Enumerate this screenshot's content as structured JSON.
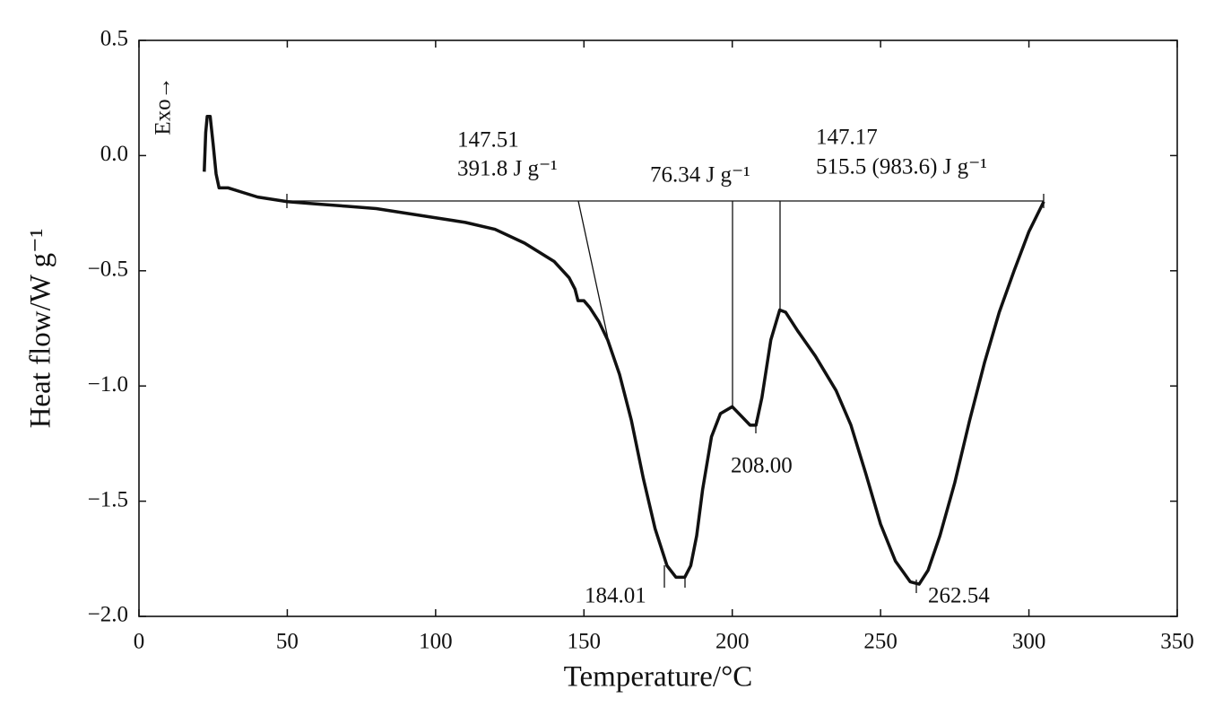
{
  "chart_data": {
    "type": "line",
    "x_label": "Temperature/°C",
    "y_label": "Heat flow/W g⁻¹",
    "x": [
      22,
      22.5,
      23,
      24,
      25,
      26,
      27,
      30,
      35,
      40,
      50,
      60,
      70,
      80,
      90,
      100,
      110,
      120,
      130,
      140,
      145,
      147,
      148,
      150,
      152,
      155,
      158,
      162,
      166,
      170,
      174,
      178,
      181,
      184,
      186,
      188,
      190,
      193,
      196,
      200,
      203,
      206,
      208,
      210,
      213,
      216,
      218,
      222,
      228,
      235,
      240,
      245,
      250,
      255,
      260,
      263,
      266,
      270,
      275,
      280,
      285,
      290,
      295,
      300,
      305
    ],
    "series": [
      {
        "name": "Heat flow",
        "color": "#111111",
        "values": [
          -0.07,
          0.1,
          0.17,
          0.17,
          0.05,
          -0.08,
          -0.14,
          -0.14,
          -0.16,
          -0.18,
          -0.2,
          -0.21,
          -0.22,
          -0.23,
          -0.25,
          -0.27,
          -0.29,
          -0.32,
          -0.38,
          -0.46,
          -0.53,
          -0.58,
          -0.63,
          -0.63,
          -0.66,
          -0.72,
          -0.8,
          -0.95,
          -1.15,
          -1.4,
          -1.62,
          -1.78,
          -1.83,
          -1.83,
          -1.78,
          -1.65,
          -1.45,
          -1.22,
          -1.12,
          -1.09,
          -1.13,
          -1.17,
          -1.17,
          -1.05,
          -0.8,
          -0.67,
          -0.68,
          -0.76,
          -0.87,
          -1.02,
          -1.17,
          -1.38,
          -1.6,
          -1.76,
          -1.85,
          -1.86,
          -1.8,
          -1.65,
          -1.42,
          -1.15,
          -0.9,
          -0.68,
          -0.5,
          -0.33,
          -0.2
        ]
      }
    ],
    "xlim": [
      0,
      350
    ],
    "xticks": [
      0,
      50,
      100,
      150,
      200,
      250,
      300,
      350
    ],
    "ylim": [
      -2.0,
      0.5
    ],
    "yticks": [
      {
        "value": -2.0,
        "label": "−2.0"
      },
      {
        "value": -1.5,
        "label": "−1.5"
      },
      {
        "value": -1.0,
        "label": "−1.0"
      },
      {
        "value": -0.5,
        "label": "−0.5"
      },
      {
        "value": 0.0,
        "label": "0.0"
      },
      0.5
    ],
    "annotations": {
      "exo": "Exo→",
      "a1": "147.51",
      "a2": "391.8 J g⁻¹",
      "a3": "76.34 J g⁻¹",
      "a4": "147.17",
      "a5": "515.5 (983.6) J g⁻¹",
      "p1": "184.01",
      "p2": "208.00",
      "p3": "262.54"
    }
  }
}
